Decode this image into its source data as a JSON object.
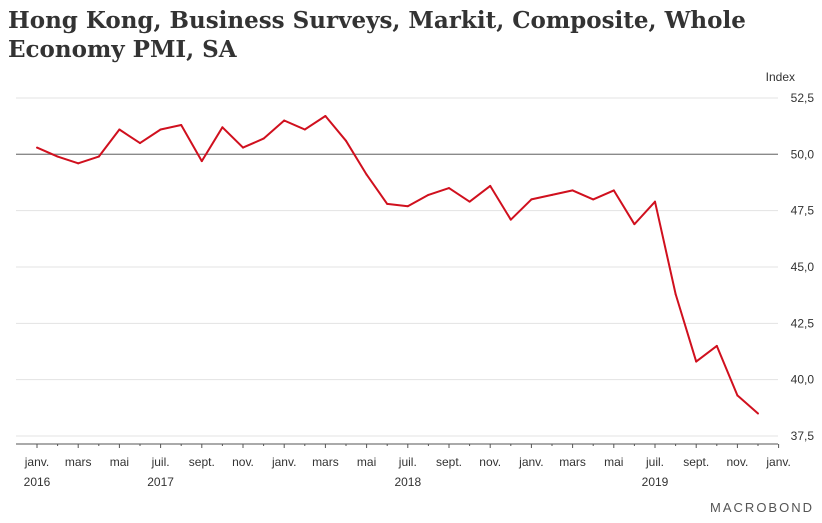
{
  "title": "Hong Kong, Business Surveys, Markit, Composite, Whole Economy PMI, SA",
  "brand": "MACROBOND",
  "chart_data": {
    "type": "line",
    "title": "Hong Kong, Business Surveys, Markit, Composite, Whole Economy PMI, SA",
    "ylabel": "Index",
    "ylim": [
      37.5,
      52.5
    ],
    "yticks": [
      37.5,
      40.0,
      42.5,
      45.0,
      47.5,
      50.0,
      52.5
    ],
    "ytick_labels": [
      "37,5",
      "40,0",
      "42,5",
      "45,0",
      "47,5",
      "50,0",
      "52,5"
    ],
    "reference_line": 50.0,
    "grid": true,
    "x_month_labels": [
      "janv.",
      "mars",
      "mai",
      "juil.",
      "sept.",
      "nov.",
      "janv.",
      "mars",
      "mai",
      "juil.",
      "sept.",
      "nov.",
      "janv.",
      "mars",
      "mai",
      "juil.",
      "sept.",
      "nov.",
      "janv."
    ],
    "x_month_index": [
      0,
      2,
      4,
      6,
      8,
      10,
      12,
      14,
      16,
      18,
      20,
      22,
      24,
      26,
      28,
      30,
      32,
      34,
      36
    ],
    "x_year_labels": [
      {
        "label": "2016",
        "month_index": 0
      },
      {
        "label": "2017",
        "month_index": 6
      },
      {
        "label": "2018",
        "month_index": 18
      },
      {
        "label": "2019",
        "month_index": 30
      }
    ],
    "series": [
      {
        "color": "#d0101e",
        "x_start": "2016-01",
        "values": [
          50.3,
          49.9,
          49.6,
          49.9,
          51.1,
          50.5,
          51.1,
          51.3,
          49.7,
          51.2,
          50.3,
          50.7,
          51.5,
          51.1,
          51.7,
          50.6,
          49.1,
          47.8,
          47.7,
          48.2,
          48.5,
          47.9,
          48.6,
          47.1,
          48.0,
          48.2,
          48.4,
          48.0,
          48.4,
          46.9,
          47.9,
          43.8,
          40.8,
          41.5,
          39.3,
          38.5
        ]
      }
    ]
  }
}
